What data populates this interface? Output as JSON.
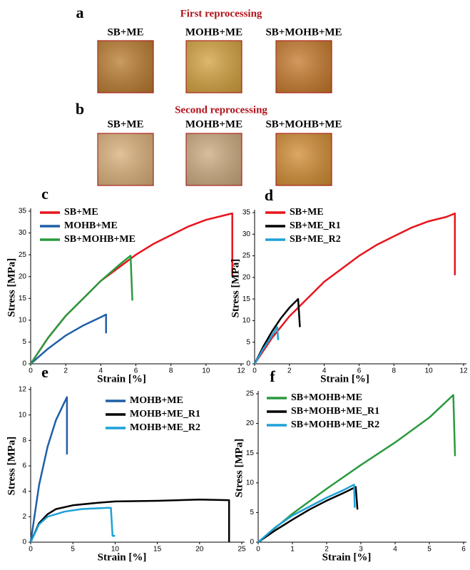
{
  "photo_panels": [
    {
      "label": "a",
      "title": "First reprocessing",
      "samples": [
        "SB+ME",
        "MOHB+ME",
        "SB+MOHB+ME"
      ],
      "colors": [
        "#b87a2e",
        "#d2a03e",
        "#c4782a"
      ]
    },
    {
      "label": "b",
      "title": "Second reprocessing",
      "samples": [
        "SB+ME",
        "MOHB+ME",
        "SB+MOHB+ME"
      ],
      "colors": [
        "#d8ae78",
        "#cba97e",
        "#d08b32"
      ]
    }
  ],
  "chart_data": [
    {
      "type": "line",
      "panel_label": "c",
      "x_label": "Strain [%]",
      "y_label": "Stress [MPa]",
      "legend": "upper left",
      "xlim": [
        0,
        12
      ],
      "xticks": [
        0,
        2,
        4,
        6,
        8,
        10,
        12
      ],
      "ylim": [
        0,
        35
      ],
      "yticks": [
        0,
        5,
        10,
        15,
        20,
        25,
        30,
        35
      ],
      "series": [
        {
          "name": "SB+ME",
          "color": "#e8141c",
          "x": [
            0,
            1,
            2,
            3,
            4,
            5,
            6,
            7,
            8,
            9,
            10,
            11,
            11.5,
            11.5
          ],
          "values": [
            0,
            6,
            11,
            15,
            19,
            22,
            25,
            27.5,
            29.5,
            31.5,
            33,
            34,
            34.5,
            20
          ]
        },
        {
          "name": "MOHB+ME",
          "color": "#1f5fa8",
          "x": [
            0,
            1,
            2,
            3,
            4,
            4.3,
            4.3
          ],
          "values": [
            0,
            3.5,
            6.5,
            8.8,
            10.7,
            11.3,
            7
          ]
        },
        {
          "name": "SB+MOHB+ME",
          "color": "#2a9a3e",
          "x": [
            0,
            1,
            2,
            3,
            4,
            5,
            5.7,
            5.8
          ],
          "values": [
            0,
            6,
            11,
            15,
            19,
            22.5,
            24.8,
            14.5
          ]
        }
      ]
    },
    {
      "type": "line",
      "panel_label": "d",
      "x_label": "Strain [%]",
      "y_label": "Stress [MPa]",
      "legend": "upper left",
      "xlim": [
        0,
        12
      ],
      "xticks": [
        0,
        2,
        4,
        6,
        8,
        10,
        12
      ],
      "ylim": [
        0,
        35
      ],
      "yticks": [
        0,
        5,
        10,
        15,
        20,
        25,
        30,
        35
      ],
      "series": [
        {
          "name": "SB+ME",
          "color": "#e8141c",
          "x": [
            0,
            1,
            2,
            3,
            4,
            5,
            6,
            7,
            8,
            9,
            10,
            11,
            11.5,
            11.5
          ],
          "values": [
            0,
            6,
            11,
            15,
            19,
            22,
            25,
            27.5,
            29.5,
            31.5,
            33,
            34,
            34.8,
            20.5
          ]
        },
        {
          "name": "SB+ME_R1",
          "color": "#000000",
          "x": [
            0,
            0.5,
            1,
            1.5,
            2,
            2.5,
            2.6
          ],
          "values": [
            0,
            4,
            7.5,
            10.5,
            13,
            15,
            8.5
          ]
        },
        {
          "name": "SB+ME_R2",
          "color": "#1da1d8",
          "x": [
            0,
            0.5,
            1,
            1.3,
            1.35
          ],
          "values": [
            0,
            3.5,
            6.5,
            8.5,
            5.5
          ]
        }
      ]
    },
    {
      "type": "line",
      "panel_label": "e",
      "x_label": "Strain [%]",
      "y_label": "Stress [MPa]",
      "legend": "upper right",
      "xlim": [
        0,
        25
      ],
      "xticks": [
        0,
        5,
        10,
        15,
        20,
        25
      ],
      "ylim": [
        0,
        12
      ],
      "yticks": [
        0,
        2,
        4,
        6,
        8,
        10,
        12
      ],
      "series": [
        {
          "name": "MOHB+ME",
          "color": "#1f5fa8",
          "x": [
            0,
            1,
            2,
            3,
            4,
            4.3,
            4.3
          ],
          "values": [
            0,
            4.5,
            7.5,
            9.6,
            11,
            11.4,
            6.9
          ]
        },
        {
          "name": "MOHB+ME_R1",
          "color": "#000000",
          "x": [
            0,
            1,
            2,
            3,
            5,
            8,
            10,
            15,
            20,
            23.5,
            23.5
          ],
          "values": [
            0,
            1.5,
            2.2,
            2.6,
            2.9,
            3.1,
            3.2,
            3.25,
            3.35,
            3.3,
            0
          ]
        },
        {
          "name": "MOHB+ME_R2",
          "color": "#1da1d8",
          "x": [
            0,
            1,
            2,
            4,
            6,
            9,
            9.5,
            9.7,
            10
          ],
          "values": [
            0,
            1.4,
            2,
            2.4,
            2.6,
            2.7,
            2.7,
            0.5,
            0.5
          ]
        }
      ]
    },
    {
      "type": "line",
      "panel_label": "f",
      "x_label": "Strain [%]",
      "y_label": "Stress [MPa]",
      "legend": "upper left",
      "xlim": [
        0,
        6
      ],
      "xticks": [
        0,
        1,
        2,
        3,
        4,
        5,
        6
      ],
      "ylim": [
        0,
        25
      ],
      "yticks": [
        0,
        5,
        10,
        15,
        20,
        25
      ],
      "series": [
        {
          "name": "SB+MOHB+ME",
          "color": "#2a9a3e",
          "x": [
            0,
            1,
            2,
            3,
            4,
            5,
            5.7,
            5.75
          ],
          "values": [
            0,
            4.8,
            9,
            13,
            16.8,
            21,
            24.8,
            14.5
          ]
        },
        {
          "name": "SB+MOHB+ME_R1",
          "color": "#000000",
          "x": [
            0,
            0.5,
            1,
            1.5,
            2,
            2.5,
            2.85,
            2.9
          ],
          "values": [
            0,
            2,
            3.8,
            5.5,
            7,
            8.3,
            9.3,
            5.5
          ]
        },
        {
          "name": "SB+MOHB+ME_R2",
          "color": "#1da1d8",
          "x": [
            0,
            0.5,
            1,
            1.5,
            2,
            2.5,
            2.8,
            2.82
          ],
          "values": [
            0,
            2.5,
            4.5,
            6,
            7.5,
            8.8,
            9.7,
            5.8
          ]
        }
      ]
    }
  ]
}
